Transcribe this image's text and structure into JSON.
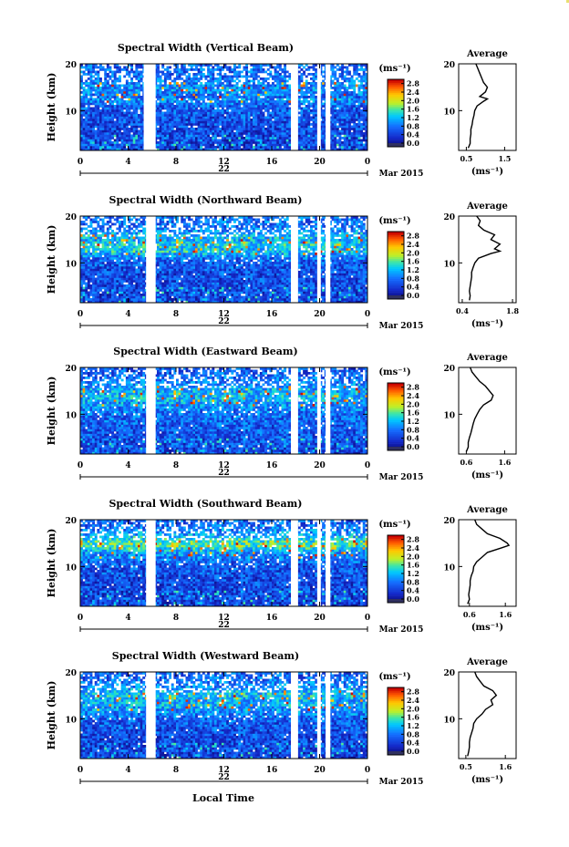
{
  "figure": {
    "month_label": "Mar 2015",
    "xlabel": "Local Time",
    "ylabel": "Height (km)",
    "colorbar_unit": "(ms⁻¹)",
    "colorbar_ticks": [
      "0.0",
      "0.4",
      "0.8",
      "1.2",
      "1.6",
      "2.0",
      "2.4",
      "2.8"
    ],
    "avg_title": "Average",
    "avg_xlabel": "(ms⁻¹)"
  },
  "chart_data": [
    {
      "type": "heatmap",
      "title": "Spectral Width (Vertical Beam)",
      "xlabel": "Local Time",
      "ylabel": "Height (km)",
      "x_ticks": [
        "0",
        "4",
        "8",
        "12",
        "16",
        "20",
        "0"
      ],
      "xlim": [
        0,
        24
      ],
      "y_ticks": [
        "10",
        "20"
      ],
      "ylim": [
        1.5,
        20
      ],
      "date_label": "22",
      "month_label": "Mar 2015",
      "colorbar": {
        "label": "(ms⁻¹)",
        "range": [
          0.0,
          3.0
        ],
        "ticks": [
          "0.0",
          "0.4",
          "0.8",
          "1.2",
          "1.6",
          "2.0",
          "2.4",
          "2.8"
        ]
      },
      "data_gaps_hours": [
        [
          5.3,
          6.3
        ],
        [
          17.6,
          18.2
        ],
        [
          19.8,
          20.1
        ],
        [
          20.5,
          20.9
        ]
      ],
      "profile": {
        "title": "Average",
        "xlabel": "(ms⁻¹)",
        "x_ticks": [
          "0.5",
          "1.5"
        ],
        "xlim": [
          0.3,
          1.8
        ],
        "heights_km": [
          2.0,
          3.0,
          4.0,
          5.0,
          6.0,
          7.0,
          8.0,
          9.0,
          10.0,
          11.0,
          12.0,
          12.5,
          13.0,
          14.0,
          15.0,
          16.0,
          17.0,
          18.0,
          19.0,
          20.0
        ],
        "widths": [
          0.55,
          0.6,
          0.6,
          0.62,
          0.62,
          0.65,
          0.67,
          0.7,
          0.72,
          0.78,
          0.95,
          1.05,
          0.85,
          1.0,
          1.05,
          0.95,
          0.9,
          0.85,
          0.8,
          0.75
        ]
      }
    },
    {
      "type": "heatmap",
      "title": "Spectral Width (Northward Beam)",
      "xlabel": "Local Time",
      "ylabel": "Height (km)",
      "x_ticks": [
        "0",
        "4",
        "8",
        "12",
        "16",
        "20",
        "0"
      ],
      "xlim": [
        0,
        24
      ],
      "y_ticks": [
        "10",
        "20"
      ],
      "ylim": [
        1.5,
        20
      ],
      "date_label": "22",
      "month_label": "Mar 2015",
      "colorbar": {
        "label": "(ms⁻¹)",
        "range": [
          0.0,
          3.0
        ],
        "ticks": [
          "0.0",
          "0.4",
          "0.8",
          "1.2",
          "1.6",
          "2.0",
          "2.4",
          "2.8"
        ]
      },
      "data_gaps_hours": [
        [
          5.5,
          6.3
        ],
        [
          17.6,
          18.2
        ],
        [
          19.8,
          20.1
        ],
        [
          20.5,
          20.9
        ]
      ],
      "profile": {
        "title": "Average",
        "xlabel": "(ms⁻¹)",
        "x_ticks": [
          "0.4",
          "1.8"
        ],
        "xlim": [
          0.3,
          1.9
        ],
        "heights_km": [
          2.0,
          3.0,
          4.0,
          5.0,
          6.0,
          7.0,
          8.0,
          9.0,
          10.0,
          11.0,
          12.0,
          12.5,
          13.0,
          14.0,
          15.0,
          16.0,
          17.0,
          18.0,
          19.0,
          20.0
        ],
        "widths": [
          0.6,
          0.62,
          0.6,
          0.62,
          0.64,
          0.66,
          0.66,
          0.7,
          0.75,
          0.85,
          1.2,
          1.45,
          1.3,
          1.45,
          1.2,
          1.3,
          1.0,
          0.85,
          0.9,
          0.8
        ]
      }
    },
    {
      "type": "heatmap",
      "title": "Spectral Width (Eastward Beam)",
      "xlabel": "Local Time",
      "ylabel": "Height (km)",
      "x_ticks": [
        "0",
        "4",
        "8",
        "12",
        "16",
        "20",
        "0"
      ],
      "xlim": [
        0,
        24
      ],
      "y_ticks": [
        "10",
        "20"
      ],
      "ylim": [
        1.5,
        20
      ],
      "date_label": "22",
      "month_label": "Mar 2015",
      "colorbar": {
        "label": "(ms⁻¹)",
        "range": [
          0.0,
          3.0
        ],
        "ticks": [
          "0.0",
          "0.4",
          "0.8",
          "1.2",
          "1.6",
          "2.0",
          "2.4",
          "2.8"
        ]
      },
      "data_gaps_hours": [
        [
          5.5,
          6.3
        ],
        [
          17.6,
          18.2
        ],
        [
          19.8,
          20.1
        ],
        [
          20.5,
          20.9
        ]
      ],
      "profile": {
        "title": "Average",
        "xlabel": "(ms⁻¹)",
        "x_ticks": [
          "0.6",
          "1.6"
        ],
        "xlim": [
          0.4,
          1.9
        ],
        "heights_km": [
          2.0,
          3.0,
          4.0,
          5.0,
          6.0,
          7.0,
          8.0,
          9.0,
          10.0,
          11.0,
          12.0,
          12.5,
          13.0,
          14.0,
          15.0,
          16.0,
          17.0,
          18.0,
          19.0,
          20.0
        ],
        "widths": [
          0.6,
          0.65,
          0.65,
          0.68,
          0.72,
          0.75,
          0.78,
          0.82,
          0.88,
          0.95,
          1.05,
          1.15,
          1.25,
          1.3,
          1.2,
          1.1,
          0.95,
          0.85,
          0.75,
          0.7
        ]
      }
    },
    {
      "type": "heatmap",
      "title": "Spectral Width (Southward Beam)",
      "xlabel": "Local Time",
      "ylabel": "Height (km)",
      "x_ticks": [
        "0",
        "4",
        "8",
        "12",
        "16",
        "20",
        "0"
      ],
      "xlim": [
        0,
        24
      ],
      "y_ticks": [
        "10",
        "20"
      ],
      "ylim": [
        1.5,
        20
      ],
      "date_label": "22",
      "month_label": "Mar 2015",
      "colorbar": {
        "label": "(ms⁻¹)",
        "range": [
          0.0,
          3.0
        ],
        "ticks": [
          "0.0",
          "0.4",
          "0.8",
          "1.2",
          "1.6",
          "2.0",
          "2.4",
          "2.8"
        ]
      },
      "data_gaps_hours": [
        [
          5.5,
          6.3
        ],
        [
          17.6,
          18.2
        ],
        [
          19.8,
          20.1
        ],
        [
          20.5,
          20.9
        ]
      ],
      "profile": {
        "title": "Average",
        "xlabel": "(ms⁻¹)",
        "x_ticks": [
          "0.6",
          "1.6"
        ],
        "xlim": [
          0.3,
          1.9
        ],
        "heights_km": [
          2.0,
          3.0,
          4.0,
          5.0,
          6.0,
          7.0,
          8.0,
          9.0,
          10.0,
          11.0,
          12.0,
          13.0,
          14.0,
          14.5,
          15.0,
          16.0,
          17.0,
          18.0,
          19.0,
          20.0
        ],
        "widths": [
          0.55,
          0.6,
          0.58,
          0.6,
          0.62,
          0.62,
          0.65,
          0.7,
          0.72,
          0.8,
          0.95,
          1.1,
          1.5,
          1.7,
          1.65,
          1.45,
          1.1,
          0.95,
          0.8,
          0.75
        ]
      }
    },
    {
      "type": "heatmap",
      "title": "Spectral Width (Westward Beam)",
      "xlabel": "Local Time",
      "ylabel": "Height (km)",
      "x_ticks": [
        "0",
        "4",
        "8",
        "12",
        "16",
        "20",
        "0"
      ],
      "xlim": [
        0,
        24
      ],
      "y_ticks": [
        "10",
        "20"
      ],
      "ylim": [
        1.5,
        20
      ],
      "date_label": "22",
      "month_label": "Mar 2015",
      "colorbar": {
        "label": "(ms⁻¹)",
        "range": [
          0.0,
          3.0
        ],
        "ticks": [
          "0.0",
          "0.4",
          "0.8",
          "1.2",
          "1.6",
          "2.0",
          "2.4",
          "2.8"
        ]
      },
      "data_gaps_hours": [
        [
          5.5,
          6.3
        ],
        [
          17.6,
          18.2
        ],
        [
          19.8,
          20.1
        ],
        [
          20.5,
          20.9
        ]
      ],
      "profile": {
        "title": "Average",
        "xlabel": "(ms⁻¹)",
        "x_ticks": [
          "0.5",
          "1.6"
        ],
        "xlim": [
          0.3,
          1.9
        ],
        "heights_km": [
          2.0,
          3.0,
          4.0,
          5.0,
          6.0,
          7.0,
          8.0,
          9.0,
          10.0,
          11.0,
          12.0,
          13.0,
          14.0,
          15.0,
          16.0,
          17.0,
          18.0,
          19.0,
          20.0
        ],
        "widths": [
          0.55,
          0.58,
          0.6,
          0.6,
          0.62,
          0.66,
          0.7,
          0.72,
          0.8,
          0.95,
          1.05,
          1.25,
          1.2,
          1.35,
          1.25,
          1.0,
          0.9,
          0.8,
          0.75
        ]
      }
    }
  ]
}
